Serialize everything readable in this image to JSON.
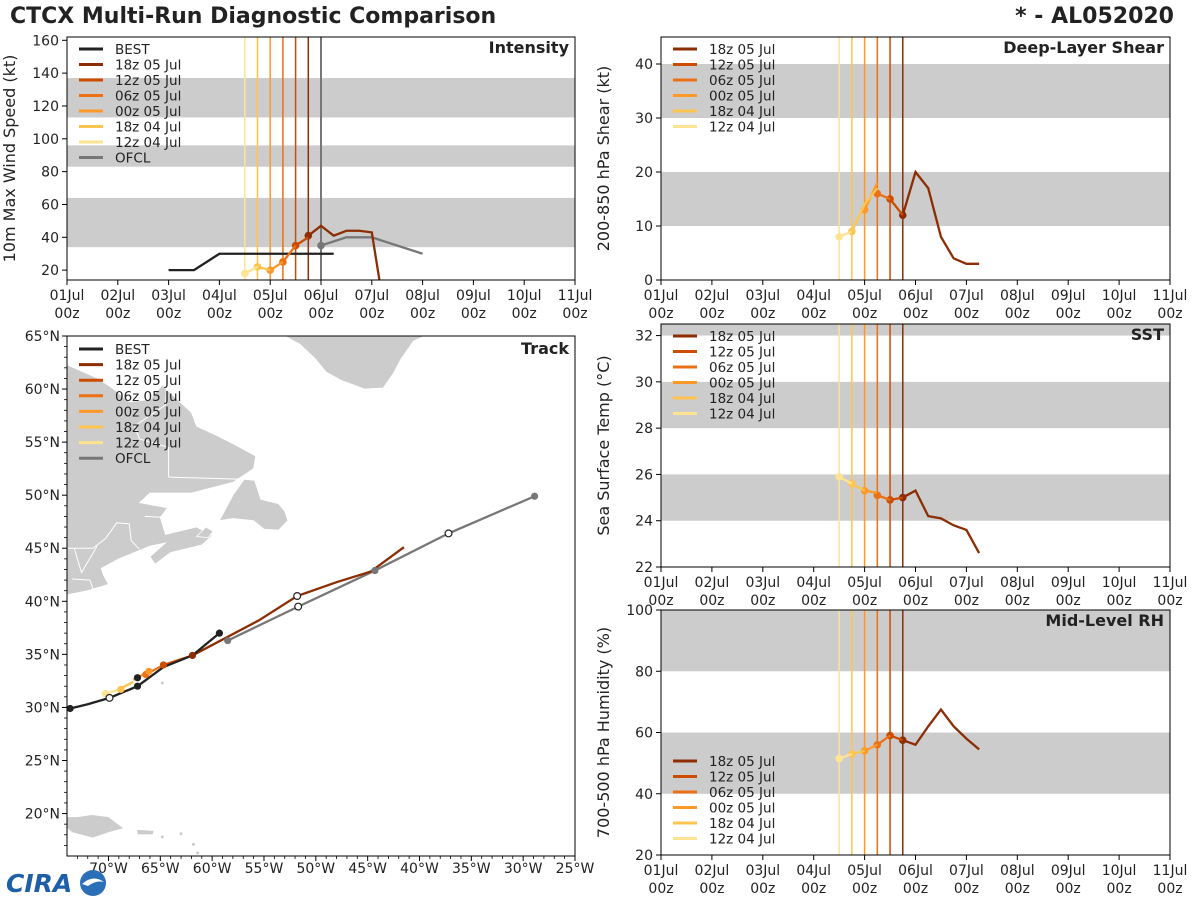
{
  "header": {
    "title": "CTCX Multi-Run Diagnostic Comparison",
    "storm": "* - AL052020"
  },
  "logo": {
    "text": "CIRA"
  },
  "time_ticks": [
    "01Jul",
    "02Jul",
    "03Jul",
    "04Jul",
    "05Jul",
    "06Jul",
    "07Jul",
    "08Jul",
    "09Jul",
    "10Jul",
    "11Jul"
  ],
  "time_ticks_sub": "00z",
  "colors": {
    "BEST": "#222222",
    "OFCL": "#777777",
    "18z 05 Jul": "#8c2d04",
    "12z 05 Jul": "#cc4c02",
    "06z 05 Jul": "#ec7014",
    "00z 05 Jul": "#fe9929",
    "18z 04 Jul": "#fec44f",
    "12z 04 Jul": "#fee391",
    "band": "#cccccc",
    "land": "#cccccc"
  },
  "chart_data": [
    {
      "id": "intensity",
      "type": "line",
      "title": "Intensity",
      "ylabel": "10m Max Wind Speed (kt)",
      "xlim": [
        0,
        10
      ],
      "ylim": [
        14,
        162
      ],
      "yticks": [
        20,
        40,
        60,
        80,
        100,
        120,
        140,
        160
      ],
      "bands": [
        [
          34,
          64
        ],
        [
          83,
          96
        ],
        [
          113,
          137
        ]
      ],
      "vlines": [
        {
          "name": "12z 04 Jul",
          "x": 3.5
        },
        {
          "name": "18z 04 Jul",
          "x": 3.75
        },
        {
          "name": "00z 05 Jul",
          "x": 4.0
        },
        {
          "name": "06z 05 Jul",
          "x": 4.25
        },
        {
          "name": "12z 05 Jul",
          "x": 4.5
        },
        {
          "name": "18z 05 Jul",
          "x": 4.75
        },
        {
          "name": "OFCL",
          "x": 5.0
        }
      ],
      "legend": [
        "BEST",
        "18z 05 Jul",
        "12z 05 Jul",
        "06z 05 Jul",
        "00z 05 Jul",
        "18z 04 Jul",
        "12z 04 Jul",
        "OFCL"
      ],
      "series": [
        {
          "name": "BEST",
          "points": [
            [
              2.0,
              20
            ],
            [
              2.5,
              20
            ],
            [
              3.0,
              30
            ],
            [
              5.0,
              30
            ],
            [
              5.25,
              30
            ]
          ]
        },
        {
          "name": "OFCL",
          "points": [
            [
              5.0,
              35
            ],
            [
              5.5,
              40
            ],
            [
              6.0,
              40
            ],
            [
              7.0,
              30
            ]
          ],
          "markers": [
            0
          ]
        },
        {
          "name": "18z 05 Jul",
          "points": [
            [
              4.75,
              41
            ],
            [
              5.0,
              47
            ],
            [
              5.25,
              41
            ],
            [
              5.5,
              44
            ],
            [
              5.75,
              44
            ],
            [
              6.0,
              43
            ],
            [
              6.15,
              14
            ]
          ],
          "markers": [
            0
          ]
        },
        {
          "name": "12z 05 Jul",
          "points": [
            [
              4.5,
              35
            ],
            [
              4.75,
              40
            ]
          ],
          "markers": [
            0
          ]
        },
        {
          "name": "06z 05 Jul",
          "points": [
            [
              4.25,
              25
            ],
            [
              4.5,
              35
            ]
          ],
          "markers": [
            0
          ]
        },
        {
          "name": "00z 05 Jul",
          "points": [
            [
              4.0,
              20
            ],
            [
              4.25,
              25
            ]
          ],
          "markers": [
            0
          ]
        },
        {
          "name": "18z 04 Jul",
          "points": [
            [
              3.75,
              22
            ],
            [
              4.0,
              20
            ]
          ],
          "markers": [
            0
          ]
        },
        {
          "name": "12z 04 Jul",
          "points": [
            [
              3.5,
              18
            ],
            [
              3.75,
              22
            ]
          ],
          "markers": [
            0
          ]
        }
      ]
    },
    {
      "id": "shear",
      "type": "line",
      "title": "Deep-Layer Shear",
      "ylabel": "200-850 hPa Shear (kt)",
      "xlim": [
        0,
        10
      ],
      "ylim": [
        0,
        45
      ],
      "yticks": [
        0,
        10,
        20,
        30,
        40
      ],
      "bands": [
        [
          10,
          20
        ],
        [
          30,
          40
        ]
      ],
      "vlines": [
        {
          "name": "12z 04 Jul",
          "x": 3.5
        },
        {
          "name": "18z 04 Jul",
          "x": 3.75
        },
        {
          "name": "00z 05 Jul",
          "x": 4.0
        },
        {
          "name": "06z 05 Jul",
          "x": 4.25
        },
        {
          "name": "12z 05 Jul",
          "x": 4.5
        },
        {
          "name": "18z 05 Jul",
          "x": 4.75
        }
      ],
      "legend": [
        "18z 05 Jul",
        "12z 05 Jul",
        "06z 05 Jul",
        "00z 05 Jul",
        "18z 04 Jul",
        "12z 04 Jul"
      ],
      "series": [
        {
          "name": "18z 05 Jul",
          "points": [
            [
              4.75,
              12
            ],
            [
              5.0,
              20
            ],
            [
              5.25,
              17
            ],
            [
              5.5,
              8
            ],
            [
              5.75,
              4
            ],
            [
              6.0,
              3
            ],
            [
              6.25,
              3
            ]
          ],
          "markers": [
            0
          ]
        },
        {
          "name": "12z 05 Jul",
          "points": [
            [
              4.5,
              15
            ],
            [
              4.75,
              12
            ]
          ],
          "markers": [
            0
          ]
        },
        {
          "name": "06z 05 Jul",
          "points": [
            [
              4.25,
              16
            ],
            [
              4.5,
              15
            ]
          ],
          "markers": [
            0
          ]
        },
        {
          "name": "00z 05 Jul",
          "points": [
            [
              4.0,
              13
            ],
            [
              4.25,
              18
            ]
          ],
          "markers": [
            0
          ]
        },
        {
          "name": "18z 04 Jul",
          "points": [
            [
              3.75,
              9
            ],
            [
              4.0,
              14
            ],
            [
              4.25,
              17
            ]
          ],
          "markers": [
            0
          ]
        },
        {
          "name": "12z 04 Jul",
          "points": [
            [
              3.5,
              8
            ],
            [
              3.75,
              9
            ]
          ],
          "markers": [
            0
          ]
        }
      ]
    },
    {
      "id": "sst",
      "type": "line",
      "title": "SST",
      "ylabel": "Sea Surface Temp (°C)",
      "xlim": [
        0,
        10
      ],
      "ylim": [
        22,
        32.5
      ],
      "yticks": [
        22,
        24,
        26,
        28,
        30,
        32
      ],
      "bands": [
        [
          24,
          26
        ],
        [
          28,
          30
        ],
        [
          32,
          34
        ]
      ],
      "vlines": [
        {
          "name": "12z 04 Jul",
          "x": 3.5
        },
        {
          "name": "18z 04 Jul",
          "x": 3.75
        },
        {
          "name": "00z 05 Jul",
          "x": 4.0
        },
        {
          "name": "06z 05 Jul",
          "x": 4.25
        },
        {
          "name": "12z 05 Jul",
          "x": 4.5
        },
        {
          "name": "18z 05 Jul",
          "x": 4.75
        }
      ],
      "legend": [
        "18z 05 Jul",
        "12z 05 Jul",
        "06z 05 Jul",
        "00z 05 Jul",
        "18z 04 Jul",
        "12z 04 Jul"
      ],
      "series": [
        {
          "name": "18z 05 Jul",
          "points": [
            [
              4.75,
              25.0
            ],
            [
              5.0,
              25.3
            ],
            [
              5.25,
              24.2
            ],
            [
              5.5,
              24.1
            ],
            [
              5.75,
              23.8
            ],
            [
              6.0,
              23.6
            ],
            [
              6.25,
              22.6
            ]
          ],
          "markers": [
            0
          ]
        },
        {
          "name": "12z 05 Jul",
          "points": [
            [
              4.5,
              24.9
            ],
            [
              4.75,
              25.0
            ]
          ],
          "markers": [
            0
          ]
        },
        {
          "name": "06z 05 Jul",
          "points": [
            [
              4.25,
              25.1
            ],
            [
              4.5,
              24.9
            ]
          ],
          "markers": [
            0
          ]
        },
        {
          "name": "00z 05 Jul",
          "points": [
            [
              4.0,
              25.3
            ],
            [
              4.25,
              25.2
            ]
          ],
          "markers": [
            0
          ]
        },
        {
          "name": "18z 04 Jul",
          "points": [
            [
              3.75,
              25.6
            ],
            [
              4.0,
              25.3
            ]
          ],
          "markers": [
            0
          ]
        },
        {
          "name": "12z 04 Jul",
          "points": [
            [
              3.5,
              25.9
            ],
            [
              3.75,
              25.6
            ]
          ],
          "markers": [
            0
          ]
        }
      ]
    },
    {
      "id": "rh",
      "type": "line",
      "title": "Mid-Level RH",
      "ylabel": "700-500 hPa Humidity (%)",
      "xlim": [
        0,
        10
      ],
      "ylim": [
        20,
        100
      ],
      "yticks": [
        20,
        40,
        60,
        80,
        100
      ],
      "bands": [
        [
          40,
          60
        ],
        [
          80,
          100
        ]
      ],
      "vlines": [
        {
          "name": "12z 04 Jul",
          "x": 3.5
        },
        {
          "name": "18z 04 Jul",
          "x": 3.75
        },
        {
          "name": "00z 05 Jul",
          "x": 4.0
        },
        {
          "name": "06z 05 Jul",
          "x": 4.25
        },
        {
          "name": "12z 05 Jul",
          "x": 4.5
        },
        {
          "name": "18z 05 Jul",
          "x": 4.75
        }
      ],
      "legend": [
        "18z 05 Jul",
        "12z 05 Jul",
        "06z 05 Jul",
        "00z 05 Jul",
        "18z 04 Jul",
        "12z 04 Jul"
      ],
      "series": [
        {
          "name": "18z 05 Jul",
          "points": [
            [
              4.75,
              57.5
            ],
            [
              5.0,
              56
            ],
            [
              5.25,
              62
            ],
            [
              5.5,
              67.5
            ],
            [
              5.75,
              62
            ],
            [
              6.0,
              58
            ],
            [
              6.25,
              54.5
            ]
          ],
          "markers": [
            0
          ]
        },
        {
          "name": "12z 05 Jul",
          "points": [
            [
              4.5,
              59
            ],
            [
              4.75,
              57.5
            ]
          ],
          "markers": [
            0
          ]
        },
        {
          "name": "06z 05 Jul",
          "points": [
            [
              4.25,
              56
            ],
            [
              4.5,
              59
            ]
          ],
          "markers": [
            0
          ]
        },
        {
          "name": "00z 05 Jul",
          "points": [
            [
              4.0,
              54
            ],
            [
              4.25,
              56
            ]
          ],
          "markers": [
            0
          ]
        },
        {
          "name": "18z 04 Jul",
          "points": [
            [
              3.75,
              53
            ],
            [
              4.0,
              54
            ]
          ],
          "markers": [
            0
          ]
        },
        {
          "name": "12z 04 Jul",
          "points": [
            [
              3.5,
              51.5
            ],
            [
              3.75,
              53
            ]
          ],
          "markers": [
            0
          ]
        }
      ]
    },
    {
      "id": "track",
      "type": "scatter",
      "title": "Track",
      "xlim": [
        -74,
        -25
      ],
      "ylim": [
        16,
        65
      ],
      "xticks": [
        -70,
        -65,
        -60,
        -55,
        -50,
        -45,
        -40,
        -35,
        -30,
        -25
      ],
      "xticklabels": [
        "70°W",
        "65°W",
        "60°W",
        "55°W",
        "50°W",
        "45°W",
        "40°W",
        "35°W",
        "30°W",
        "25°W"
      ],
      "yticks": [
        20,
        25,
        30,
        35,
        40,
        45,
        50,
        55,
        60,
        65
      ],
      "yticklabels": [
        "20°N",
        "25°N",
        "30°N",
        "35°N",
        "40°N",
        "45°N",
        "50°N",
        "55°N",
        "60°N",
        "65°N"
      ],
      "legend": [
        "BEST",
        "18z 05 Jul",
        "12z 05 Jul",
        "06z 05 Jul",
        "00z 05 Jul",
        "18z 04 Jul",
        "12z 04 Jul",
        "OFCL"
      ],
      "series": [
        {
          "name": "BEST",
          "points": [
            [
              -73.7,
              29.9
            ],
            [
              -72,
              30.3
            ],
            [
              -69.9,
              30.9
            ],
            [
              -67.2,
              32.0
            ],
            [
              -64.7,
              33.8
            ],
            [
              -61.9,
              34.9
            ],
            [
              -59.3,
              37.0
            ]
          ],
          "filled": [
            [
              -73.7,
              29.9
            ],
            [
              -67.2,
              32.0
            ],
            [
              -67.2,
              32.8
            ],
            [
              -59.3,
              37.0
            ]
          ],
          "open": [
            [
              -69.9,
              30.9
            ]
          ]
        },
        {
          "name": "OFCL",
          "points": [
            [
              -58.5,
              36.3
            ],
            [
              -51.7,
              39.5
            ],
            [
              -44.3,
              42.9
            ],
            [
              -37.2,
              46.4
            ],
            [
              -28.9,
              49.9
            ]
          ],
          "filled": [
            [
              -58.5,
              36.3
            ],
            [
              -44.3,
              42.9
            ],
            [
              -28.9,
              49.9
            ]
          ],
          "open": [
            [
              -51.7,
              39.5
            ],
            [
              -37.2,
              46.4
            ]
          ]
        },
        {
          "name": "18z 05 Jul",
          "points": [
            [
              -61.9,
              34.9
            ],
            [
              -55.5,
              38.2
            ],
            [
              -51.8,
              40.5
            ],
            [
              -48,
              41.8
            ],
            [
              -44.7,
              42.8
            ],
            [
              -41.5,
              45.1
            ]
          ],
          "filled": [
            [
              -61.9,
              34.9
            ]
          ],
          "open": [
            [
              -51.8,
              40.5
            ]
          ]
        },
        {
          "name": "12z 05 Jul",
          "points": [
            [
              -64.7,
              34.0
            ],
            [
              -61.9,
              34.9
            ]
          ],
          "filled": [
            [
              -64.7,
              34.0
            ]
          ],
          "open": []
        },
        {
          "name": "06z 05 Jul",
          "points": [
            [
              -66.4,
              33.1
            ],
            [
              -64.7,
              34.0
            ]
          ],
          "filled": [
            [
              -66.4,
              33.1
            ]
          ],
          "open": []
        },
        {
          "name": "00z 05 Jul",
          "points": [
            [
              -67.6,
              32.6
            ],
            [
              -66.1,
              33.4
            ]
          ],
          "filled": [
            [
              -66.1,
              33.4
            ]
          ],
          "open": []
        },
        {
          "name": "18z 04 Jul",
          "points": [
            [
              -69.2,
              31.6
            ],
            [
              -67.6,
              32.4
            ]
          ],
          "filled": [
            [
              -68.8,
              31.7
            ]
          ],
          "open": []
        },
        {
          "name": "12z 04 Jul",
          "points": [
            [
              -70.3,
              31.3
            ],
            [
              -68.5,
              31.8
            ]
          ],
          "filled": [
            [
              -70.3,
              31.3
            ]
          ],
          "open": []
        }
      ]
    }
  ]
}
